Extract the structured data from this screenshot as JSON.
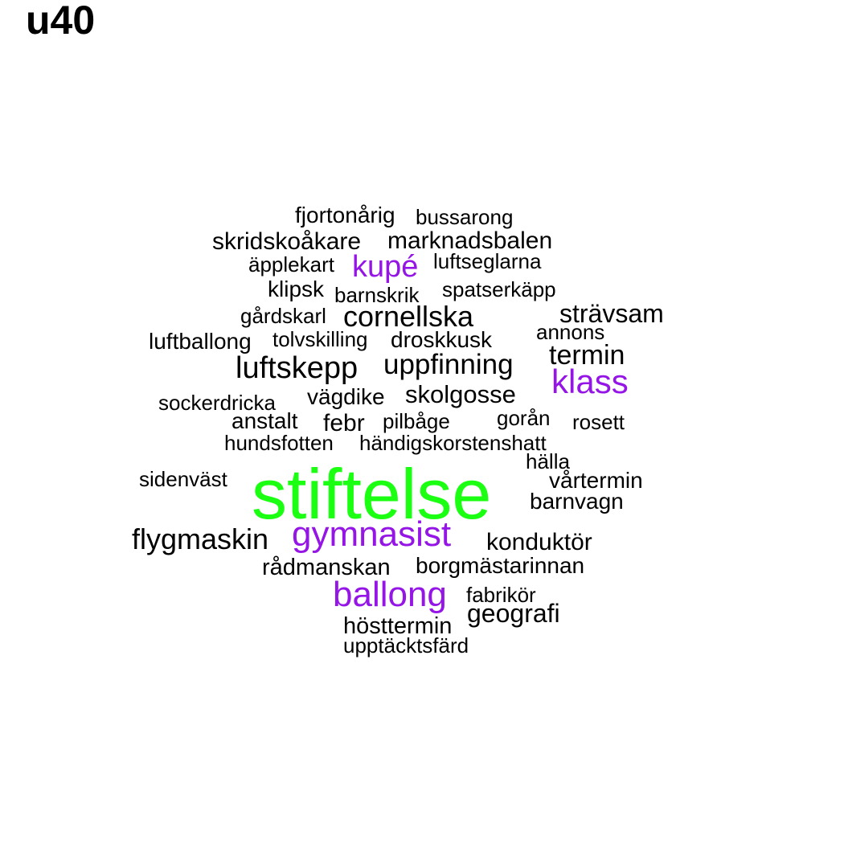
{
  "title": "u40",
  "colors": {
    "default": "#000000",
    "accent_purple": "#9415e6",
    "accent_green": "#1bff12"
  },
  "words": [
    {
      "text": "fjortonårig",
      "color": "#000000"
    },
    {
      "text": "bussarong",
      "color": "#000000"
    },
    {
      "text": "skridskoåkare",
      "color": "#000000"
    },
    {
      "text": "marknadsbalen",
      "color": "#000000"
    },
    {
      "text": "äpplekart",
      "color": "#000000"
    },
    {
      "text": "kupé",
      "color": "#9415e6"
    },
    {
      "text": "luftseglarna",
      "color": "#000000"
    },
    {
      "text": "klipsk",
      "color": "#000000"
    },
    {
      "text": "barnskrik",
      "color": "#000000"
    },
    {
      "text": "spatserkäpp",
      "color": "#000000"
    },
    {
      "text": "gårdskarl",
      "color": "#000000"
    },
    {
      "text": "cornellska",
      "color": "#000000"
    },
    {
      "text": "strävsam",
      "color": "#000000"
    },
    {
      "text": "annons",
      "color": "#000000"
    },
    {
      "text": "luftballong",
      "color": "#000000"
    },
    {
      "text": "tolvskilling",
      "color": "#000000"
    },
    {
      "text": "droskkusk",
      "color": "#000000"
    },
    {
      "text": "termin",
      "color": "#000000"
    },
    {
      "text": "luftskepp",
      "color": "#000000"
    },
    {
      "text": "uppfinning",
      "color": "#000000"
    },
    {
      "text": "klass",
      "color": "#9415e6"
    },
    {
      "text": "sockerdricka",
      "color": "#000000"
    },
    {
      "text": "vägdike",
      "color": "#000000"
    },
    {
      "text": "skolgosse",
      "color": "#000000"
    },
    {
      "text": "anstalt",
      "color": "#000000"
    },
    {
      "text": "febr",
      "color": "#000000"
    },
    {
      "text": "pilbåge",
      "color": "#000000"
    },
    {
      "text": "gorån",
      "color": "#000000"
    },
    {
      "text": "rosett",
      "color": "#000000"
    },
    {
      "text": "hundsfotten",
      "color": "#000000"
    },
    {
      "text": "händigskorstenshatt",
      "color": "#000000"
    },
    {
      "text": "hälla",
      "color": "#000000"
    },
    {
      "text": "sidenväst",
      "color": "#000000"
    },
    {
      "text": "vårtermin",
      "color": "#000000"
    },
    {
      "text": "stiftelse",
      "color": "#1bff12"
    },
    {
      "text": "barnvagn",
      "color": "#000000"
    },
    {
      "text": "flygmaskin",
      "color": "#000000"
    },
    {
      "text": "gymnasist",
      "color": "#9415e6"
    },
    {
      "text": "konduktör",
      "color": "#000000"
    },
    {
      "text": "rådmanskan",
      "color": "#000000"
    },
    {
      "text": "borgmästarinnan",
      "color": "#000000"
    },
    {
      "text": "ballong",
      "color": "#9415e6"
    },
    {
      "text": "fabrikör",
      "color": "#000000"
    },
    {
      "text": "geografi",
      "color": "#000000"
    },
    {
      "text": "hösttermin",
      "color": "#000000"
    },
    {
      "text": "upptäcktsfärd",
      "color": "#000000"
    }
  ]
}
